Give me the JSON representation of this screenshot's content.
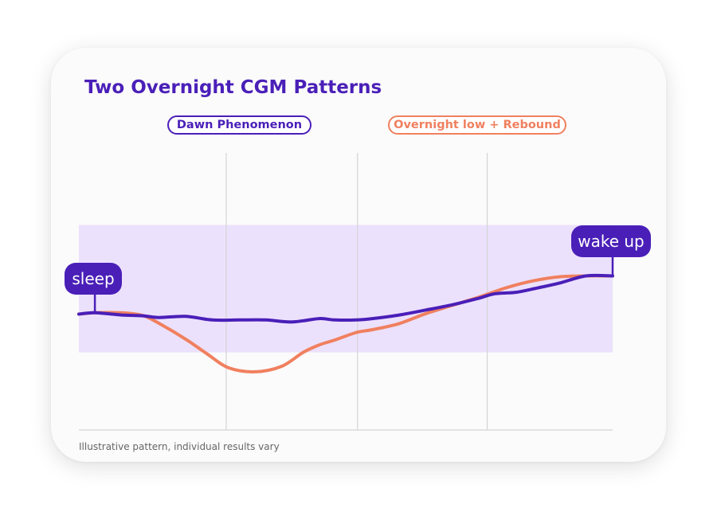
{
  "title": "Two Overnight CGM Patterns",
  "footnote": "Illustrative pattern, individual results vary",
  "colors": {
    "dawn": "#4a1fb8",
    "low": "#f0805f",
    "target_band": "#ece1fd",
    "grid": "#d4d4d4",
    "marker_bg": "#4a1fb8"
  },
  "chart_data": {
    "type": "line",
    "title": "Two Overnight CGM Patterns",
    "xlabel": "",
    "ylabel": "",
    "grid": "vertical",
    "xlim": [
      0,
      1
    ],
    "ylim": [
      0,
      1
    ],
    "target_range": [
      0.28,
      0.74
    ],
    "legend": [
      {
        "name": "Dawn Phenomenon",
        "color": "#4a1fb8"
      },
      {
        "name": "Overnight low + Rebound",
        "color": "#f0805f"
      }
    ],
    "markers": [
      {
        "label": "sleep",
        "x": 0.03,
        "y": 0.423
      },
      {
        "label": "wake up",
        "x": 1.0,
        "y": 0.556
      }
    ],
    "series": [
      {
        "name": "Dawn Phenomenon",
        "color": "#4a1fb8",
        "x": [
          0,
          0.03,
          0.08,
          0.12,
          0.15,
          0.2,
          0.25,
          0.3,
          0.35,
          0.4,
          0.45,
          0.48,
          0.52,
          0.55,
          0.6,
          0.65,
          0.7,
          0.75,
          0.78,
          0.82,
          0.86,
          0.9,
          0.95,
          1.0
        ],
        "y": [
          0.418,
          0.423,
          0.415,
          0.412,
          0.406,
          0.41,
          0.397,
          0.397,
          0.397,
          0.39,
          0.402,
          0.397,
          0.397,
          0.402,
          0.415,
          0.433,
          0.452,
          0.476,
          0.492,
          0.497,
          0.513,
          0.53,
          0.556,
          0.556
        ]
      },
      {
        "name": "Overnight low + Rebound",
        "color": "#f0805f",
        "x": [
          0,
          0.03,
          0.08,
          0.12,
          0.15,
          0.2,
          0.24,
          0.28,
          0.33,
          0.38,
          0.42,
          0.45,
          0.48,
          0.52,
          0.55,
          0.6,
          0.65,
          0.7,
          0.75,
          0.8,
          0.85,
          0.9,
          0.95,
          1.0
        ],
        "y": [
          0.418,
          0.423,
          0.423,
          0.413,
          0.385,
          0.328,
          0.275,
          0.225,
          0.21,
          0.23,
          0.28,
          0.307,
          0.325,
          0.352,
          0.362,
          0.384,
          0.42,
          0.45,
          0.48,
          0.513,
          0.538,
          0.553,
          0.556,
          0.556
        ]
      }
    ]
  }
}
